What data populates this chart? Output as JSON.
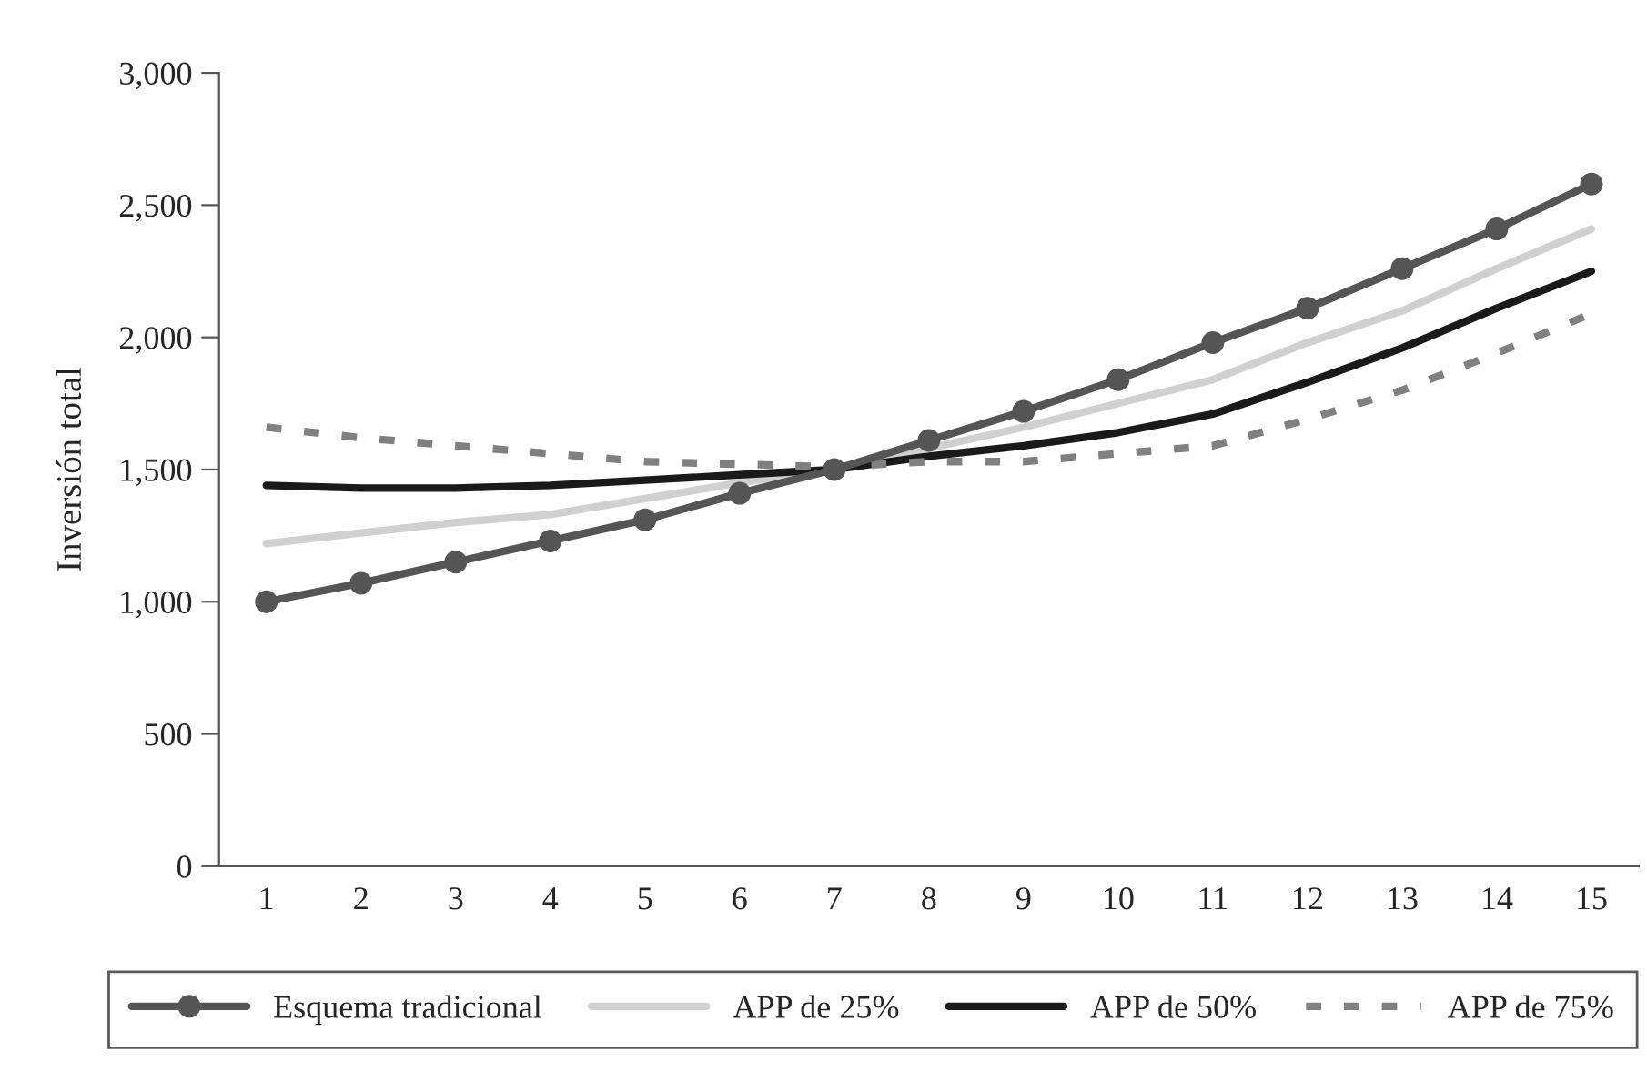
{
  "chart_data": {
    "type": "line",
    "ylabel": "Inversión total",
    "categories": [
      "1",
      "2",
      "3",
      "4",
      "5",
      "6",
      "7",
      "8",
      "9",
      "10",
      "11",
      "12",
      "13",
      "14",
      "15"
    ],
    "series": [
      {
        "name": "Esquema tradicional",
        "color": "#555555",
        "marker": "circle",
        "line_style": "solid",
        "values": [
          1000,
          1070,
          1150,
          1230,
          1310,
          1410,
          1500,
          1610,
          1720,
          1840,
          1980,
          2110,
          2260,
          2410,
          2580
        ]
      },
      {
        "name": "APP de 25%",
        "color": "#d0d0d0",
        "marker": "none",
        "line_style": "solid",
        "values": [
          1220,
          1260,
          1300,
          1330,
          1390,
          1450,
          1500,
          1580,
          1660,
          1750,
          1840,
          1980,
          2100,
          2260,
          2410
        ]
      },
      {
        "name": "APP de 50%",
        "color": "#1a1a1a",
        "marker": "none",
        "line_style": "solid",
        "values": [
          1440,
          1430,
          1430,
          1440,
          1460,
          1480,
          1500,
          1550,
          1590,
          1640,
          1710,
          1830,
          1960,
          2110,
          2250
        ]
      },
      {
        "name": "APP de 75%",
        "color": "#808080",
        "marker": "none",
        "line_style": "dashed",
        "values": [
          1660,
          1620,
          1590,
          1560,
          1530,
          1520,
          1510,
          1530,
          1530,
          1560,
          1590,
          1690,
          1800,
          1940,
          2090
        ]
      }
    ],
    "ylim": [
      0,
      3000
    ],
    "yticks": [
      {
        "value": 0,
        "label": "0"
      },
      {
        "value": 500,
        "label": "500"
      },
      {
        "value": 1000,
        "label": "1,000"
      },
      {
        "value": 1500,
        "label": "1,500"
      },
      {
        "value": 2000,
        "label": "2,000"
      },
      {
        "value": 2500,
        "label": "2,500"
      },
      {
        "value": 3000,
        "label": "3,000"
      }
    ],
    "grid": false,
    "legend": "bottom"
  }
}
